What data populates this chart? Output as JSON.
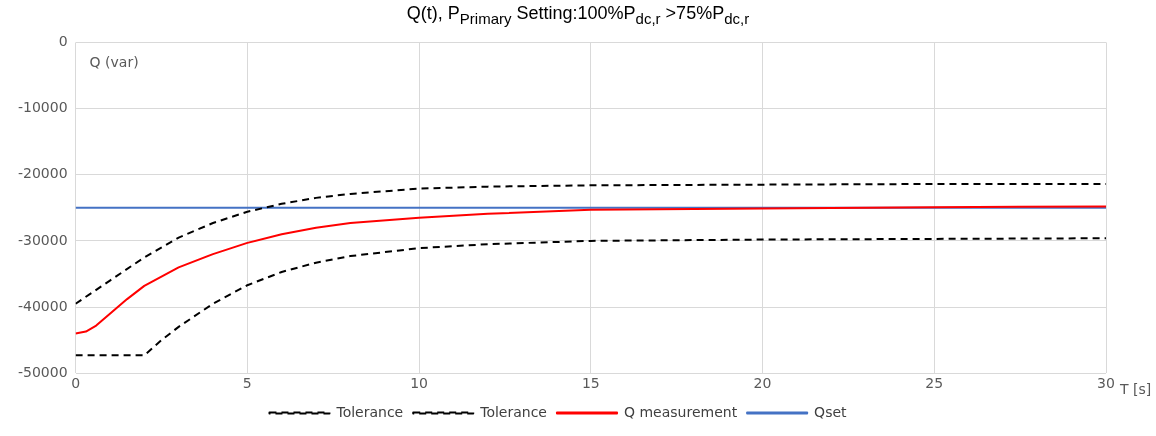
{
  "chart_data": {
    "type": "line",
    "title": "Q(t), P$_{Primary}$ Setting:100%P$_{dc,r}$ >75%P$_{dc,r}$",
    "xlabel": "T [s]",
    "annotations": [
      "Q (var)"
    ],
    "xlim": [
      0,
      30
    ],
    "xticks": [
      0,
      5,
      10,
      15,
      20,
      25,
      30
    ],
    "ylim": [
      -50000,
      0
    ],
    "yticks": [
      0,
      -10000,
      -20000,
      -30000,
      -40000,
      -50000
    ],
    "grid": true,
    "legend": "bottom",
    "marker": "none",
    "series": [
      {
        "name": "Tolerance",
        "color": "#000000",
        "line_style": "dashed",
        "x": [
          0,
          1,
          2,
          3,
          4,
          5,
          6,
          7,
          8,
          10,
          12,
          15,
          20,
          25,
          30
        ],
        "values": [
          -39500,
          -36000,
          -32500,
          -29500,
          -27300,
          -25600,
          -24400,
          -23500,
          -22900,
          -22100,
          -21800,
          -21600,
          -21500,
          -21400,
          -21400
        ]
      },
      {
        "name": "Tolerance",
        "color": "#000000",
        "line_style": "dashed",
        "x": [
          0,
          2,
          2.5,
          3,
          4,
          5,
          6,
          7,
          8,
          10,
          12,
          15,
          20,
          30
        ],
        "values": [
          -47300,
          -47300,
          -45000,
          -43000,
          -39500,
          -36700,
          -34700,
          -33300,
          -32300,
          -31100,
          -30500,
          -30000,
          -29800,
          -29600
        ]
      },
      {
        "name": "Q measurement",
        "color": "#ff0000",
        "line_style": "solid",
        "x": [
          0,
          0.3,
          0.6,
          1,
          1.5,
          2,
          3,
          4,
          5,
          6,
          7,
          8,
          10,
          12,
          15,
          20,
          25,
          30
        ],
        "values": [
          -44000,
          -43700,
          -42800,
          -41000,
          -38800,
          -36800,
          -34000,
          -32000,
          -30300,
          -29000,
          -28000,
          -27300,
          -26500,
          -25900,
          -25300,
          -25100,
          -24900,
          -24800
        ]
      },
      {
        "name": "Qset",
        "color": "#4472c4",
        "line_style": "solid",
        "x": [
          0,
          30
        ],
        "values": [
          -25000,
          -25000
        ]
      }
    ]
  }
}
